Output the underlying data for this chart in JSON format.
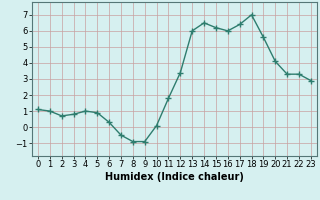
{
  "x": [
    0,
    1,
    2,
    3,
    4,
    5,
    6,
    7,
    8,
    9,
    10,
    11,
    12,
    13,
    14,
    15,
    16,
    17,
    18,
    19,
    20,
    21,
    22,
    23
  ],
  "y": [
    1.1,
    1.0,
    0.7,
    0.8,
    1.0,
    0.9,
    0.3,
    -0.5,
    -0.9,
    -0.9,
    0.1,
    1.8,
    3.4,
    6.0,
    6.5,
    6.2,
    6.0,
    6.4,
    7.0,
    5.6,
    4.1,
    3.3,
    3.3,
    2.9
  ],
  "line_color": "#2e7d6e",
  "marker": "+",
  "bg_color": "#d6f0f0",
  "grid_color": "#c8a0a0",
  "xlabel": "Humidex (Indice chaleur)",
  "ylim": [
    -1.8,
    7.8
  ],
  "xlim": [
    -0.5,
    23.5
  ],
  "yticks": [
    -1,
    0,
    1,
    2,
    3,
    4,
    5,
    6,
    7
  ],
  "xticks": [
    0,
    1,
    2,
    3,
    4,
    5,
    6,
    7,
    8,
    9,
    10,
    11,
    12,
    13,
    14,
    15,
    16,
    17,
    18,
    19,
    20,
    21,
    22,
    23
  ],
  "xlabel_fontsize": 7,
  "tick_fontsize": 6,
  "line_width": 1.0,
  "marker_size": 4
}
